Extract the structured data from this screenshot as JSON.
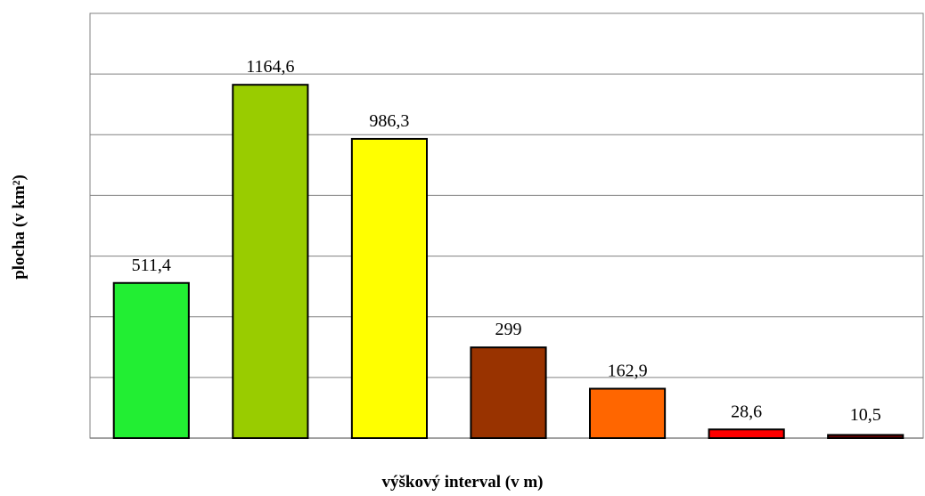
{
  "chart_data": {
    "type": "bar",
    "categories": [
      "",
      "",
      "",
      "",
      "",
      "",
      ""
    ],
    "values": [
      511.4,
      1164.6,
      986.3,
      299,
      162.9,
      28.6,
      10.5
    ],
    "value_labels": [
      "511,4",
      "1164,6",
      "986,3",
      "299",
      "162,9",
      "28,6",
      "10,5"
    ],
    "colors": [
      "#22ee33",
      "#99cc00",
      "#ffff00",
      "#993300",
      "#ff6600",
      "#ff0000",
      "#660000"
    ],
    "title": "",
    "xlabel": "výškový interval (v m)",
    "ylabel": "plocha (v km²)",
    "ylim": [
      0,
      1400
    ],
    "gridlines": [
      0,
      200,
      400,
      600,
      800,
      1000,
      1200,
      1400
    ],
    "grid": true,
    "legend": "none"
  }
}
